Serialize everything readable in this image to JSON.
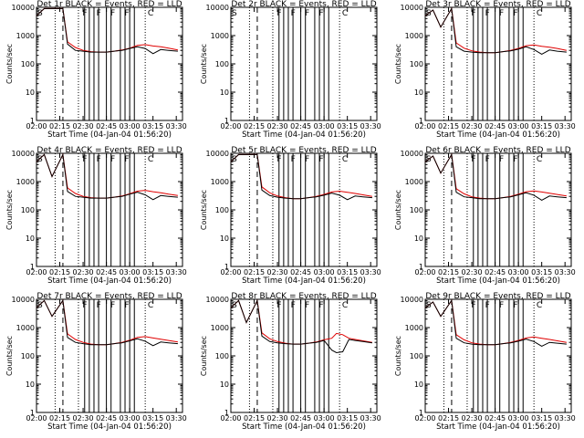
{
  "xaxis_label": "Start Time (04-Jan-04 01:56:20)",
  "yaxis_label": "Counts/sec",
  "y_ticks": [
    "1",
    "10",
    "100",
    "1000",
    "10000"
  ],
  "x_ticks": [
    "02:00",
    "02:15",
    "02:30",
    "02:45",
    "03:00",
    "03:15",
    "03:30"
  ],
  "colors": {
    "events": "#000000",
    "lld": "#e00000"
  },
  "chart_data": [
    {
      "type": "line",
      "title": "Det 1r BLACK = Events, RED = LLD",
      "xlabel": "Start Time (04-Jan-04 01:56:20)",
      "ylabel": "Counts/sec",
      "ylog": true,
      "ylim": [
        1,
        10000
      ],
      "xlim": [
        "02:00",
        "03:34"
      ],
      "marker_labels": [
        "S",
        "F",
        "F",
        "F",
        "F",
        "C"
      ],
      "series": [
        {
          "name": "Events",
          "x": [
            "02:00",
            "02:05",
            "02:10",
            "02:17",
            "02:20",
            "02:25",
            "02:30",
            "02:35",
            "02:40",
            "02:45",
            "02:50",
            "02:55",
            "03:00",
            "03:05",
            "03:10",
            "03:15",
            "03:20",
            "03:25",
            "03:31"
          ],
          "values": [
            5000,
            9000,
            9000,
            9000,
            500,
            300,
            280,
            260,
            260,
            260,
            280,
            300,
            350,
            400,
            350,
            230,
            320,
            300,
            280
          ]
        },
        {
          "name": "LLD",
          "x": [
            "02:00",
            "02:05",
            "02:10",
            "02:17",
            "02:20",
            "02:25",
            "02:30",
            "02:35",
            "02:40",
            "02:45",
            "02:50",
            "02:55",
            "03:00",
            "03:05",
            "03:10",
            "03:15",
            "03:20",
            "03:25",
            "03:31"
          ],
          "values": [
            5000,
            9000,
            9000,
            9000,
            600,
            380,
            300,
            270,
            260,
            260,
            280,
            310,
            360,
            450,
            480,
            430,
            400,
            360,
            310
          ]
        }
      ]
    },
    {
      "type": "line",
      "title": "Det 2r BLACK = Events, RED = LLD",
      "xlabel": "Start Time (04-Jan-04 01:56:20)",
      "ylabel": "Counts/sec",
      "ylog": true,
      "ylim": [
        1,
        10000
      ],
      "xlim": [
        "02:00",
        "03:34"
      ],
      "marker_labels": [
        "S",
        "F",
        "F",
        "F",
        "F",
        "C"
      ],
      "series": []
    },
    {
      "type": "line",
      "title": "Det 3r BLACK = Events, RED = LLD",
      "xlabel": "Start Time (04-Jan-04 01:56:20)",
      "ylabel": "Counts/sec",
      "ylog": true,
      "ylim": [
        1,
        10000
      ],
      "xlim": [
        "02:00",
        "03:34"
      ],
      "marker_labels": [
        "S",
        "F",
        "F",
        "F",
        "F",
        "C"
      ],
      "series": [
        {
          "name": "Events",
          "x": [
            "02:00",
            "02:05",
            "02:10",
            "02:17",
            "02:20",
            "02:25",
            "02:30",
            "02:35",
            "02:40",
            "02:45",
            "02:50",
            "02:55",
            "03:00",
            "03:05",
            "03:10",
            "03:15",
            "03:20",
            "03:25",
            "03:31"
          ],
          "values": [
            5000,
            8000,
            2000,
            9000,
            400,
            280,
            260,
            250,
            250,
            250,
            270,
            290,
            330,
            400,
            320,
            220,
            310,
            280,
            260
          ]
        },
        {
          "name": "LLD",
          "x": [
            "02:00",
            "02:05",
            "02:10",
            "02:17",
            "02:20",
            "02:25",
            "02:30",
            "02:35",
            "02:40",
            "02:45",
            "02:50",
            "02:55",
            "03:00",
            "03:05",
            "03:10",
            "03:15",
            "03:20",
            "03:25",
            "03:31"
          ],
          "values": [
            5000,
            8000,
            2000,
            9000,
            550,
            360,
            290,
            260,
            250,
            250,
            270,
            300,
            350,
            440,
            470,
            420,
            390,
            350,
            300
          ]
        }
      ]
    },
    {
      "type": "line",
      "title": "Det 4r BLACK = Events, RED = LLD",
      "xlabel": "Start Time (04-Jan-04 01:56:20)",
      "ylabel": "Counts/sec",
      "ylog": true,
      "ylim": [
        1,
        10000
      ],
      "xlim": [
        "02:00",
        "03:34"
      ],
      "marker_labels": [
        "S",
        "F",
        "F",
        "F",
        "F",
        "C"
      ],
      "series": [
        {
          "name": "Events",
          "x": [
            "02:00",
            "02:05",
            "02:10",
            "02:17",
            "02:20",
            "02:25",
            "02:30",
            "02:35",
            "02:40",
            "02:45",
            "02:50",
            "02:55",
            "03:00",
            "03:05",
            "03:10",
            "03:15",
            "03:20",
            "03:25",
            "03:31"
          ],
          "values": [
            5000,
            9000,
            1500,
            9000,
            450,
            300,
            280,
            260,
            260,
            260,
            280,
            300,
            360,
            420,
            340,
            230,
            320,
            300,
            280
          ]
        },
        {
          "name": "LLD",
          "x": [
            "02:00",
            "02:05",
            "02:10",
            "02:17",
            "02:20",
            "02:25",
            "02:30",
            "02:35",
            "02:40",
            "02:45",
            "02:50",
            "02:55",
            "03:00",
            "03:05",
            "03:10",
            "03:15",
            "03:20",
            "03:25",
            "03:31"
          ],
          "values": [
            5000,
            9000,
            1500,
            9000,
            600,
            380,
            300,
            270,
            260,
            260,
            280,
            310,
            370,
            460,
            490,
            440,
            400,
            360,
            320
          ]
        }
      ]
    },
    {
      "type": "line",
      "title": "Det 5r BLACK = Events, RED = LLD",
      "xlabel": "Start Time (04-Jan-04 01:56:20)",
      "ylabel": "Counts/sec",
      "ylog": true,
      "ylim": [
        1,
        10000
      ],
      "xlim": [
        "02:00",
        "03:34"
      ],
      "marker_labels": [
        "S",
        "F",
        "F",
        "F",
        "F",
        "C"
      ],
      "series": [
        {
          "name": "Events",
          "x": [
            "02:00",
            "02:05",
            "02:10",
            "02:17",
            "02:20",
            "02:25",
            "02:30",
            "02:35",
            "02:40",
            "02:45",
            "02:50",
            "02:55",
            "03:00",
            "03:05",
            "03:10",
            "03:15",
            "03:20",
            "03:25",
            "03:31"
          ],
          "values": [
            5000,
            9000,
            9000,
            9000,
            500,
            320,
            280,
            260,
            250,
            250,
            270,
            290,
            330,
            390,
            330,
            230,
            310,
            290,
            270
          ]
        },
        {
          "name": "LLD",
          "x": [
            "02:00",
            "02:05",
            "02:10",
            "02:17",
            "02:20",
            "02:25",
            "02:30",
            "02:35",
            "02:40",
            "02:45",
            "02:50",
            "02:55",
            "03:00",
            "03:05",
            "03:10",
            "03:15",
            "03:20",
            "03:25",
            "03:31"
          ],
          "values": [
            5000,
            9000,
            9000,
            9000,
            650,
            400,
            310,
            270,
            250,
            250,
            270,
            300,
            350,
            430,
            460,
            420,
            380,
            340,
            300
          ]
        }
      ]
    },
    {
      "type": "line",
      "title": "Det 6r BLACK = Events, RED = LLD",
      "xlabel": "Start Time (04-Jan-04 01:56:20)",
      "ylabel": "Counts/sec",
      "ylog": true,
      "ylim": [
        1,
        10000
      ],
      "xlim": [
        "02:00",
        "03:34"
      ],
      "marker_labels": [
        "S",
        "F",
        "F",
        "F",
        "F",
        "C"
      ],
      "series": [
        {
          "name": "Events",
          "x": [
            "02:00",
            "02:05",
            "02:10",
            "02:17",
            "02:20",
            "02:25",
            "02:30",
            "02:35",
            "02:40",
            "02:45",
            "02:50",
            "02:55",
            "03:00",
            "03:05",
            "03:10",
            "03:15",
            "03:20",
            "03:25",
            "03:31"
          ],
          "values": [
            5000,
            8000,
            2000,
            9000,
            420,
            290,
            270,
            250,
            250,
            250,
            270,
            290,
            340,
            400,
            330,
            220,
            310,
            290,
            270
          ]
        },
        {
          "name": "LLD",
          "x": [
            "02:00",
            "02:05",
            "02:10",
            "02:17",
            "02:20",
            "02:25",
            "02:30",
            "02:35",
            "02:40",
            "02:45",
            "02:50",
            "02:55",
            "03:00",
            "03:05",
            "03:10",
            "03:15",
            "03:20",
            "03:25",
            "03:31"
          ],
          "values": [
            5000,
            8000,
            2000,
            9000,
            560,
            370,
            290,
            260,
            250,
            250,
            270,
            300,
            360,
            440,
            470,
            430,
            390,
            350,
            310
          ]
        }
      ]
    },
    {
      "type": "line",
      "title": "Det 7r BLACK = Events, RED = LLD",
      "xlabel": "Start Time (04-Jan-04 01:56:20)",
      "ylabel": "Counts/sec",
      "ylog": true,
      "ylim": [
        1,
        10000
      ],
      "xlim": [
        "02:00",
        "03:34"
      ],
      "marker_labels": [
        "S",
        "F",
        "F",
        "F",
        "F",
        "C"
      ],
      "series": [
        {
          "name": "Events",
          "x": [
            "02:00",
            "02:05",
            "02:10",
            "02:17",
            "02:20",
            "02:25",
            "02:30",
            "02:35",
            "02:40",
            "02:45",
            "02:50",
            "02:55",
            "03:00",
            "03:05",
            "03:10",
            "03:15",
            "03:20",
            "03:25",
            "03:31"
          ],
          "values": [
            5000,
            9000,
            2500,
            9000,
            450,
            300,
            270,
            250,
            250,
            250,
            270,
            290,
            340,
            400,
            330,
            230,
            310,
            290,
            270
          ]
        },
        {
          "name": "LLD",
          "x": [
            "02:00",
            "02:05",
            "02:10",
            "02:17",
            "02:20",
            "02:25",
            "02:30",
            "02:35",
            "02:40",
            "02:45",
            "02:50",
            "02:55",
            "03:00",
            "03:05",
            "03:10",
            "03:15",
            "03:20",
            "03:25",
            "03:31"
          ],
          "values": [
            5000,
            9000,
            2500,
            9000,
            600,
            380,
            300,
            260,
            250,
            250,
            270,
            300,
            360,
            450,
            480,
            430,
            390,
            350,
            310
          ]
        }
      ]
    },
    {
      "type": "line",
      "title": "Det 8r BLACK = Events, RED = LLD",
      "xlabel": "Start Time (04-Jan-04 01:56:20)",
      "ylabel": "Counts/sec",
      "ylog": true,
      "ylim": [
        1,
        10000
      ],
      "xlim": [
        "02:00",
        "03:34"
      ],
      "marker_labels": [
        "S",
        "F",
        "F",
        "F",
        "F",
        "C"
      ],
      "series": [
        {
          "name": "Events",
          "x": [
            "02:00",
            "02:05",
            "02:10",
            "02:17",
            "02:20",
            "02:25",
            "02:30",
            "02:35",
            "02:40",
            "02:45",
            "02:50",
            "02:55",
            "03:00",
            "03:05",
            "03:08",
            "03:12",
            "03:16",
            "03:20",
            "03:25",
            "03:31"
          ],
          "values": [
            5000,
            9000,
            1500,
            9000,
            500,
            320,
            290,
            270,
            260,
            260,
            280,
            300,
            350,
            160,
            130,
            140,
            380,
            350,
            320,
            290
          ]
        },
        {
          "name": "LLD",
          "x": [
            "02:00",
            "02:05",
            "02:10",
            "02:17",
            "02:20",
            "02:25",
            "02:30",
            "02:35",
            "02:40",
            "02:45",
            "02:50",
            "02:55",
            "03:00",
            "03:05",
            "03:08",
            "03:12",
            "03:16",
            "03:20",
            "03:25",
            "03:31"
          ],
          "values": [
            5000,
            9000,
            1500,
            9000,
            650,
            400,
            320,
            280,
            260,
            260,
            280,
            310,
            370,
            420,
            620,
            560,
            420,
            380,
            340,
            300
          ]
        }
      ]
    },
    {
      "type": "line",
      "title": "Det 9r BLACK = Events, RED = LLD",
      "xlabel": "Start Time (04-Jan-04 01:56:20)",
      "ylabel": "Counts/sec",
      "ylog": true,
      "ylim": [
        1,
        10000
      ],
      "xlim": [
        "02:00",
        "03:34"
      ],
      "marker_labels": [
        "S",
        "F",
        "F",
        "F",
        "F",
        "C"
      ],
      "series": [
        {
          "name": "Events",
          "x": [
            "02:00",
            "02:05",
            "02:10",
            "02:17",
            "02:20",
            "02:25",
            "02:30",
            "02:35",
            "02:40",
            "02:45",
            "02:50",
            "02:55",
            "03:00",
            "03:05",
            "03:10",
            "03:15",
            "03:20",
            "03:25",
            "03:31"
          ],
          "values": [
            5000,
            8000,
            2500,
            9000,
            420,
            290,
            260,
            250,
            250,
            250,
            270,
            290,
            330,
            390,
            320,
            220,
            300,
            280,
            260
          ]
        },
        {
          "name": "LLD",
          "x": [
            "02:00",
            "02:05",
            "02:10",
            "02:17",
            "02:20",
            "02:25",
            "02:30",
            "02:35",
            "02:40",
            "02:45",
            "02:50",
            "02:55",
            "03:00",
            "03:05",
            "03:10",
            "03:15",
            "03:20",
            "03:25",
            "03:31"
          ],
          "values": [
            5000,
            8000,
            2500,
            9000,
            560,
            370,
            290,
            260,
            250,
            250,
            270,
            300,
            350,
            430,
            470,
            420,
            380,
            340,
            300
          ]
        }
      ]
    }
  ],
  "gaps": {
    "start": "02:30",
    "end": "03:05",
    "times": [
      "02:31",
      "02:34",
      "02:37",
      "02:40",
      "02:45",
      "02:48",
      "02:54",
      "02:57",
      "03:00",
      "03:03"
    ]
  },
  "vlines": {
    "dotted": [
      "02:12",
      "02:27",
      "03:10"
    ],
    "dashed": [
      "02:17"
    ]
  }
}
